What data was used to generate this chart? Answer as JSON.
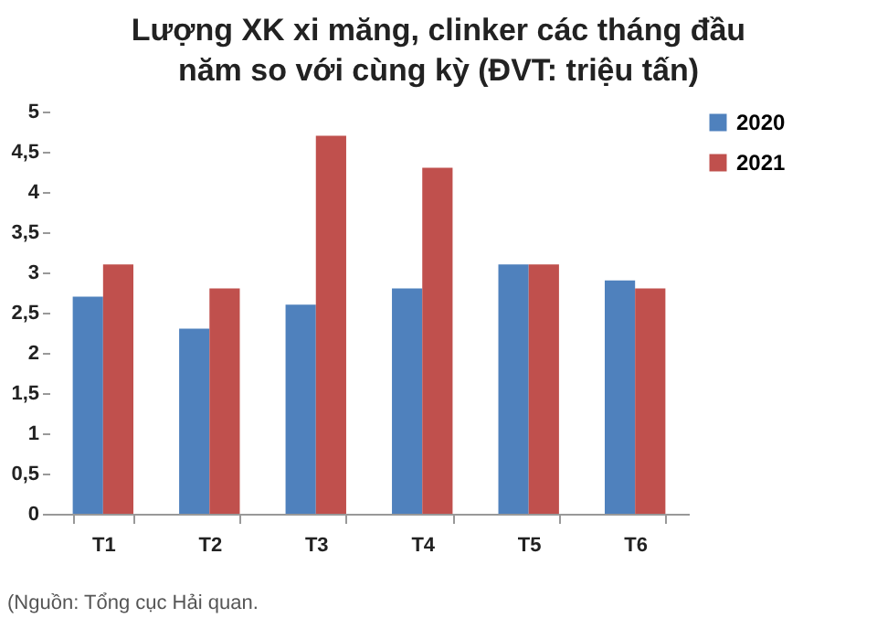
{
  "chart_data": {
    "type": "bar",
    "title": "Lượng XK xi măng, clinker các tháng đầu năm so với cùng kỳ (ĐVT: triệu tấn)",
    "categories": [
      "T1",
      "T2",
      "T3",
      "T4",
      "T5",
      "T6"
    ],
    "series": [
      {
        "name": "2020",
        "color": "#4f81bd",
        "values": [
          2.7,
          2.3,
          2.6,
          2.8,
          3.1,
          2.9
        ]
      },
      {
        "name": "2021",
        "color": "#c0504d",
        "values": [
          3.1,
          2.8,
          4.7,
          4.3,
          3.1,
          2.8
        ]
      }
    ],
    "ylim": [
      0,
      5
    ],
    "yticks": [
      0,
      {
        "value": 0.5,
        "label": "0,5"
      },
      1,
      {
        "value": 1.5,
        "label": "1,5"
      },
      2,
      {
        "value": 2.5,
        "label": "2,5"
      },
      3,
      {
        "value": 3.5,
        "label": "3,5"
      },
      4,
      {
        "value": 4.5,
        "label": "4,5"
      },
      5
    ],
    "grid": false,
    "legend": "right",
    "annotations": [
      "(Nguồn: Tổng cục Hải quan."
    ]
  }
}
